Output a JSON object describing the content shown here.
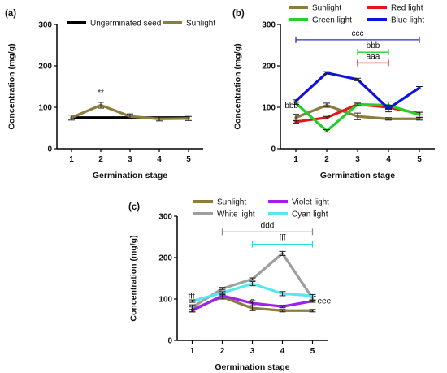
{
  "chart_data": [
    {
      "panel": "(a)",
      "type": "line",
      "ylabel": "Concentration (mg/g)",
      "xlabel": "Germination stage",
      "x": [
        1,
        2,
        3,
        4,
        5
      ],
      "xlim": [
        0.5,
        5.5
      ],
      "ylim": [
        0,
        300
      ],
      "yticks": [
        0,
        100,
        200,
        300
      ],
      "legend_position": "top",
      "series": [
        {
          "name": "Ungerminated seed",
          "color": "#000000",
          "values": [
            75,
            75,
            75,
            75,
            75
          ],
          "errors": [
            0,
            0,
            0,
            0,
            0
          ]
        },
        {
          "name": "Sunlight",
          "color": "#8b7d3e",
          "values": [
            75,
            105,
            78,
            72,
            73
          ],
          "errors": [
            6,
            7,
            6,
            5,
            5
          ]
        }
      ],
      "annotations": [
        {
          "text": "**",
          "x": 2,
          "y": 135
        }
      ]
    },
    {
      "panel": "(b)",
      "type": "line",
      "ylabel": "Concentration (mg/g)",
      "xlabel": "Germination stage",
      "x": [
        1,
        2,
        3,
        4,
        5
      ],
      "xlim": [
        0.5,
        5.5
      ],
      "ylim": [
        0,
        300
      ],
      "yticks": [
        0,
        100,
        200,
        300
      ],
      "legend_position": "top",
      "series": [
        {
          "name": "Sunlight",
          "color": "#8b7d3e",
          "values": [
            75,
            105,
            78,
            72,
            72
          ],
          "errors": [
            8,
            5,
            8,
            3,
            3
          ]
        },
        {
          "name": "Red light",
          "color": "#e8141c",
          "values": [
            65,
            75,
            107,
            100,
            85
          ],
          "errors": [
            3,
            3,
            3,
            5,
            3
          ]
        },
        {
          "name": "Green light",
          "color": "#22d12a",
          "values": [
            110,
            43,
            107,
            105,
            82
          ],
          "errors": [
            3,
            3,
            3,
            8,
            6
          ]
        },
        {
          "name": "Blue light",
          "color": "#1111dd",
          "values": [
            115,
            183,
            167,
            97,
            147
          ],
          "errors": [
            3,
            3,
            3,
            8,
            3
          ]
        }
      ],
      "brackets": [
        {
          "text": "ccc",
          "from": 1,
          "to": 5,
          "y": 263,
          "color": "#2d2dcc"
        },
        {
          "text": "bbb",
          "from": 3,
          "to": 4,
          "y": 233,
          "color": "#22d12a"
        },
        {
          "text": "aaa",
          "from": 3,
          "to": 4,
          "y": 207,
          "color": "#e8141c"
        }
      ],
      "annotations": [
        {
          "text": "bbb",
          "x": 1,
          "y": 104
        }
      ]
    },
    {
      "panel": "(c)",
      "type": "line",
      "ylabel": "Concentration (mg/g)",
      "xlabel": "Germination stage",
      "x": [
        1,
        2,
        3,
        4,
        5
      ],
      "xlim": [
        0.5,
        5.5
      ],
      "ylim": [
        0,
        300
      ],
      "yticks": [
        0,
        100,
        200,
        300
      ],
      "legend_position": "top",
      "series": [
        {
          "name": "Sunlight",
          "color": "#8b7d3e",
          "values": [
            75,
            105,
            78,
            72,
            72
          ],
          "errors": [
            6,
            5,
            6,
            3,
            3
          ]
        },
        {
          "name": "Violet light",
          "color": "#a020f0",
          "values": [
            72,
            108,
            90,
            82,
            95
          ],
          "errors": [
            3,
            3,
            6,
            3,
            3
          ]
        },
        {
          "name": "White light",
          "color": "#9e9e9e",
          "values": [
            80,
            125,
            148,
            210,
            102
          ],
          "errors": [
            6,
            3,
            3,
            5,
            5
          ]
        },
        {
          "name": "Cyan light",
          "color": "#55e8f0",
          "values": [
            95,
            115,
            137,
            113,
            108
          ],
          "errors": [
            3,
            3,
            5,
            5,
            3
          ]
        }
      ],
      "brackets": [
        {
          "text": "ddd",
          "from": 2,
          "to": 5,
          "y": 262,
          "color": "#8a8a8a"
        },
        {
          "text": "fff",
          "from": 3,
          "to": 5,
          "y": 232,
          "color": "#2bd9e0"
        }
      ],
      "annotations": [
        {
          "text": "fff",
          "x": 1,
          "y": 107
        },
        {
          "text": "e",
          "x": 3,
          "y": 95
        },
        {
          "text": "eee",
          "x": 5,
          "y": 95
        }
      ]
    }
  ]
}
